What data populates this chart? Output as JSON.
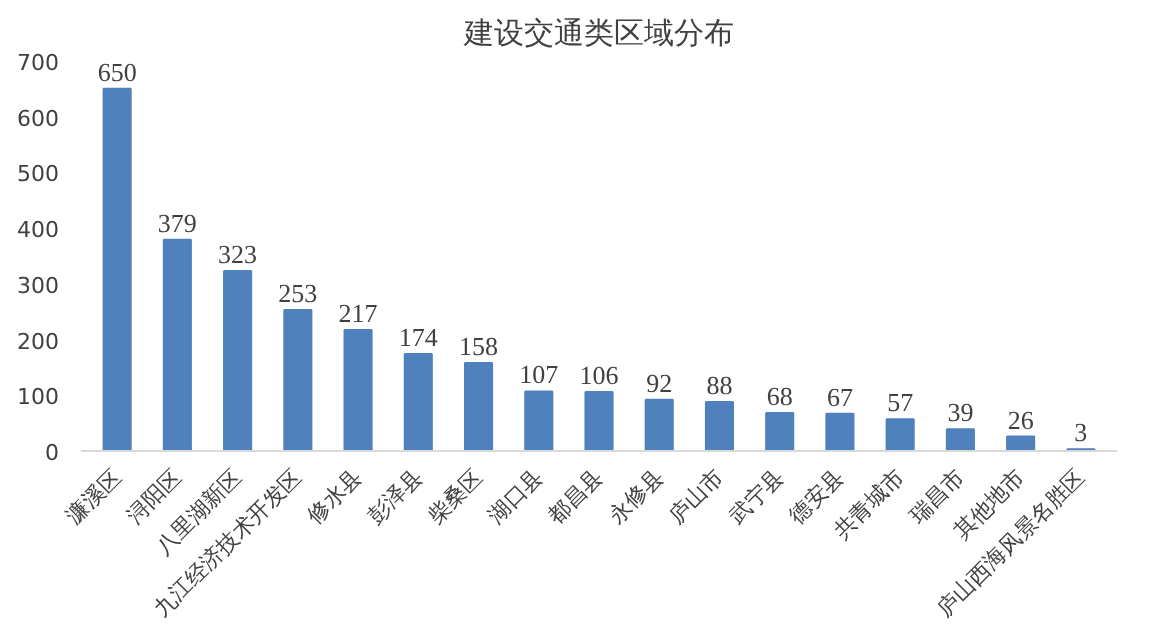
{
  "chart_data": {
    "type": "bar",
    "title": "建设交通类区域分布",
    "categories": [
      "濂溪区",
      "浔阳区",
      "八里湖新区",
      "九江经济技术开发区",
      "修水县",
      "彭泽县",
      "柴桑区",
      "湖口县",
      "都昌县",
      "永修县",
      "庐山市",
      "武宁县",
      "德安县",
      "共青城市",
      "瑞昌市",
      "其他地市",
      "庐山西海风景名胜区"
    ],
    "values": [
      650,
      379,
      323,
      253,
      217,
      174,
      158,
      107,
      106,
      92,
      88,
      68,
      67,
      57,
      39,
      26,
      3
    ],
    "color": "#4f81bd",
    "ylim": [
      0,
      700
    ],
    "yticks": [
      0,
      100,
      200,
      300,
      400,
      500,
      600,
      700
    ],
    "grid": false,
    "data_labels": true
  }
}
